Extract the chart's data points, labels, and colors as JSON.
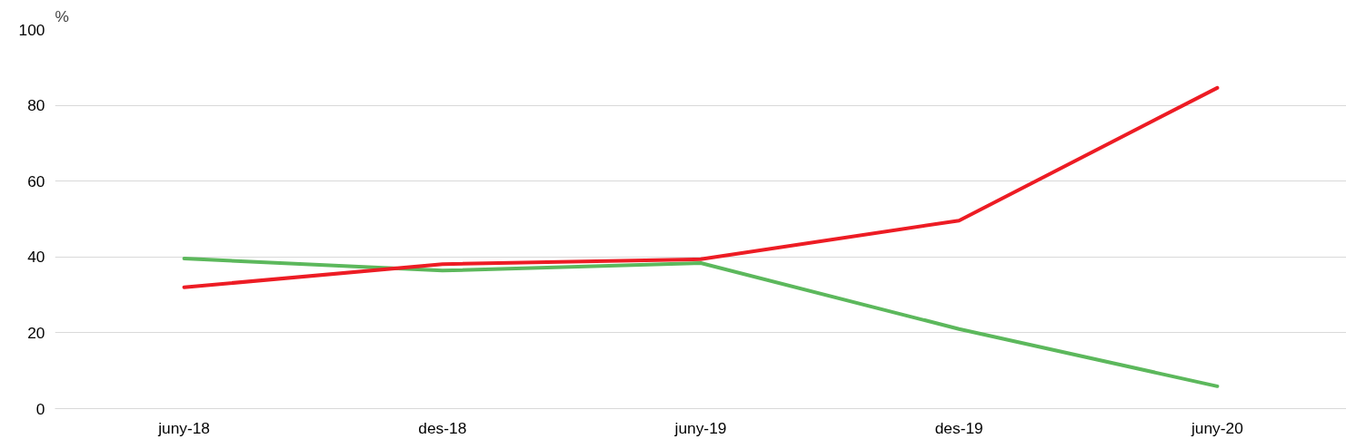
{
  "chart_data": {
    "type": "line",
    "ylabel": "%",
    "categories": [
      "juny-18",
      "des-18",
      "juny-19",
      "des-19",
      "juny-20"
    ],
    "series": [
      {
        "color": "#5cb85c",
        "values": [
          39.6,
          36.4,
          38.4,
          21,
          5.9
        ]
      },
      {
        "color": "#ed1c24",
        "values": [
          32,
          38.1,
          39.4,
          49.6,
          84.6
        ]
      }
    ],
    "ylim": [
      0,
      100
    ],
    "yticks": [
      0,
      20,
      40,
      60,
      80,
      100
    ],
    "grid": "y",
    "marker": "none",
    "line_style": "solid"
  }
}
